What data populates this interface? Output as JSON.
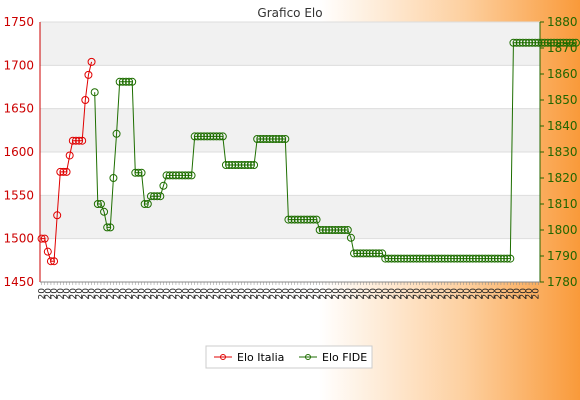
{
  "chart_data": {
    "type": "line",
    "title": "Grafico Elo",
    "y_left": {
      "min": 1450,
      "max": 1750,
      "ticks": [
        1450,
        1500,
        1550,
        1600,
        1650,
        1700,
        1750
      ]
    },
    "y_right": {
      "min": 1780,
      "max": 1880,
      "ticks": [
        1780,
        1790,
        1800,
        1810,
        1820,
        1830,
        1840,
        1850,
        1860,
        1870,
        1880
      ]
    },
    "grid": true,
    "legend_position": "bottom",
    "x_label_prefix": "20",
    "x_count": 160,
    "series": [
      {
        "name": "Elo Italia",
        "axis": "left",
        "color": "#e00000",
        "values": [
          1500,
          1500,
          1485,
          1474,
          1474,
          1527,
          1577,
          1577,
          1577,
          1596,
          1613,
          1613,
          1613,
          1613,
          1660,
          1689,
          1704
        ]
      },
      {
        "name": "Elo FIDE",
        "axis": "right",
        "color": "#1e6e00",
        "start_index": 17,
        "values": [
          1853,
          1810,
          1810,
          1807,
          1801,
          1801,
          1820,
          1837,
          1857,
          1857,
          1857,
          1857,
          1857,
          1822,
          1822,
          1822,
          1810,
          1810,
          1813,
          1813,
          1813,
          1813,
          1817,
          1821,
          1821,
          1821,
          1821,
          1821,
          1821,
          1821,
          1821,
          1821,
          1836,
          1836,
          1836,
          1836,
          1836,
          1836,
          1836,
          1836,
          1836,
          1836,
          1825,
          1825,
          1825,
          1825,
          1825,
          1825,
          1825,
          1825,
          1825,
          1825,
          1835,
          1835,
          1835,
          1835,
          1835,
          1835,
          1835,
          1835,
          1835,
          1835,
          1804,
          1804,
          1804,
          1804,
          1804,
          1804,
          1804,
          1804,
          1804,
          1804,
          1800,
          1800,
          1800,
          1800,
          1800,
          1800,
          1800,
          1800,
          1800,
          1800,
          1797,
          1791,
          1791,
          1791,
          1791,
          1791,
          1791,
          1791,
          1791,
          1791,
          1791,
          1789,
          1789,
          1789,
          1789,
          1789,
          1789,
          1789,
          1789,
          1789,
          1789,
          1789,
          1789,
          1789,
          1789,
          1789,
          1789,
          1789,
          1789,
          1789,
          1789,
          1789,
          1789,
          1789,
          1789,
          1789,
          1789,
          1789,
          1789,
          1789,
          1789,
          1789,
          1789,
          1789,
          1789,
          1789,
          1789,
          1789,
          1789,
          1789,
          1789,
          1789,
          1872,
          1872,
          1872,
          1872,
          1872,
          1872,
          1872,
          1872,
          1872,
          1872,
          1872,
          1872,
          1872,
          1872,
          1872,
          1872,
          1872,
          1872,
          1872,
          1872,
          1872
        ]
      }
    ]
  }
}
